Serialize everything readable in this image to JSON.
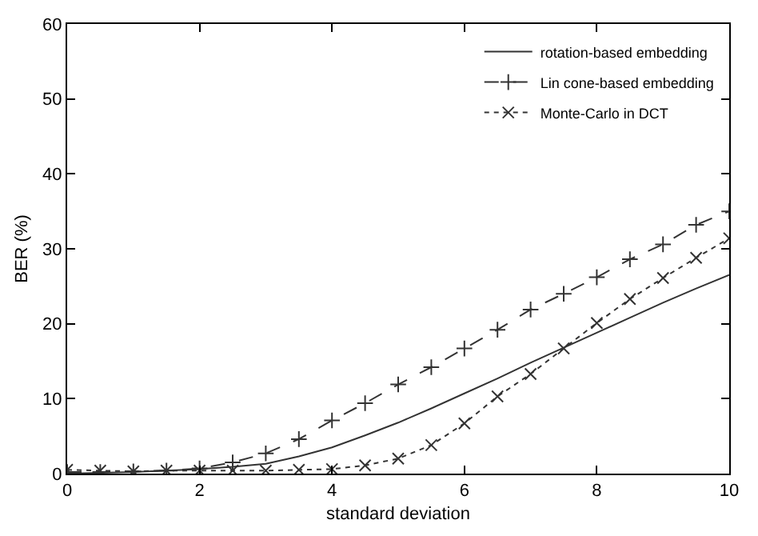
{
  "chart_data": {
    "type": "line",
    "xlabel": "standard deviation",
    "ylabel": "BER (%)",
    "x": [
      0,
      0.5,
      1,
      1.5,
      2,
      2.5,
      3,
      3.5,
      4,
      4.5,
      5,
      5.5,
      6,
      6.5,
      7,
      7.5,
      8,
      8.5,
      9,
      9.5,
      10
    ],
    "series": [
      {
        "name": "rotation-based embedding",
        "color": "#333333",
        "line_style": "solid",
        "marker": "none",
        "values": [
          0,
          0.1,
          0.2,
          0.4,
          0.6,
          0.9,
          1.3,
          2.3,
          3.5,
          5.1,
          6.8,
          8.7,
          10.7,
          12.7,
          14.8,
          16.8,
          18.8,
          20.8,
          22.8,
          24.7,
          26.5
        ]
      },
      {
        "name": "Lin cone-based embedding",
        "color": "#333333",
        "line_style": "dashed",
        "marker": "cross",
        "values": [
          0.2,
          0.2,
          0.3,
          0.4,
          0.7,
          1.5,
          2.7,
          4.6,
          7.1,
          9.4,
          11.9,
          14.2,
          16.7,
          19.2,
          21.9,
          24.0,
          26.2,
          28.6,
          30.6,
          33.2,
          35.0
        ]
      },
      {
        "name": "Monte-Carlo in DCT",
        "color": "#333333",
        "line_style": "dotted",
        "marker": "x",
        "values": [
          0.5,
          0.4,
          0.3,
          0.4,
          0.4,
          0.4,
          0.4,
          0.5,
          0.6,
          1.1,
          2.0,
          3.8,
          6.7,
          10.3,
          13.3,
          16.7,
          20.1,
          23.3,
          26.1,
          28.8,
          31.4
        ]
      }
    ],
    "xlim": [
      0,
      10
    ],
    "xticks": [
      0,
      2,
      4,
      6,
      8,
      10
    ],
    "ylim": [
      0,
      60
    ],
    "yticks": [
      0,
      10,
      20,
      30,
      40,
      50,
      60
    ],
    "legend": "top right"
  }
}
